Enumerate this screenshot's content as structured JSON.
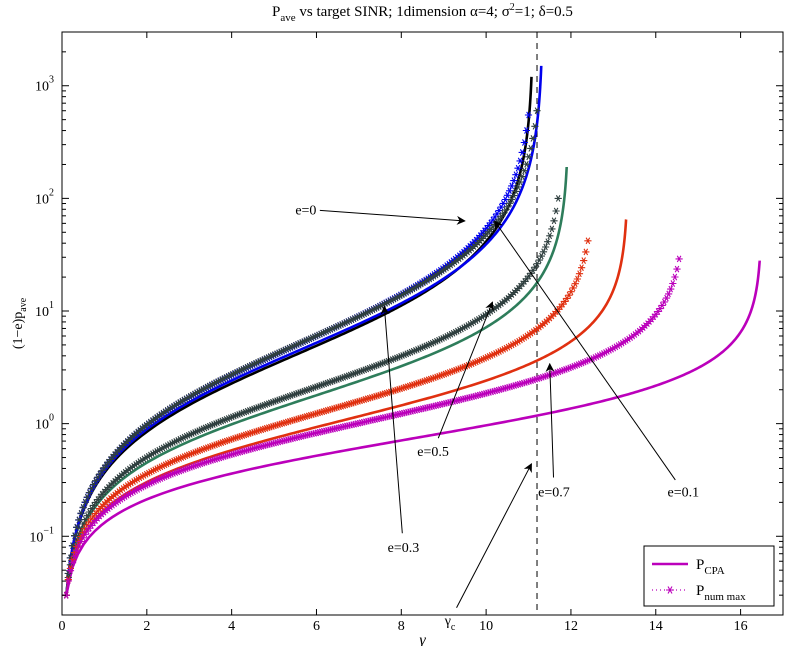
{
  "chart_data": {
    "type": "line",
    "title": {
      "prefix": "P",
      "prefix_sub": "ave",
      "text": " vs target SINR; 1dimension α=4; σ",
      "sup": "2",
      "suffix": "=1; δ=0.5"
    },
    "xlabel": "γ",
    "ylabel": {
      "base": "(1−e)p",
      "sub": "ave"
    },
    "x_scale": "linear",
    "y_scale": "log",
    "xlim": [
      0,
      17
    ],
    "ylim": [
      0.02,
      3000
    ],
    "x_ticks": [
      0,
      2,
      4,
      6,
      8,
      10,
      12,
      14,
      16
    ],
    "y_ticks": [
      {
        "value": 0.1,
        "base": "10",
        "exp": "−1"
      },
      {
        "value": 1,
        "base": "10",
        "exp": "0"
      },
      {
        "value": 10,
        "base": "10",
        "exp": "1"
      },
      {
        "value": 100,
        "base": "10",
        "exp": "2"
      },
      {
        "value": 1000,
        "base": "10",
        "exp": "3"
      }
    ],
    "grid": false,
    "vline": {
      "x": 11.2,
      "style": "dashed",
      "color": "#000000"
    },
    "series": [
      {
        "e": 0,
        "color": "#000000",
        "x_min": 0.1,
        "x_max": 11.07,
        "y_end": 1200
      },
      {
        "e": 0.1,
        "color": "#0000ee",
        "x_min": 0.1,
        "x_max": 11.3,
        "y_end": 1500
      },
      {
        "e": 0.3,
        "color": "#2e7d5b",
        "x_min": 0.1,
        "x_max": 11.9,
        "y_end": 190
      },
      {
        "e": 0.5,
        "color": "#e03010",
        "x_min": 0.1,
        "x_max": 13.3,
        "y_end": 65
      },
      {
        "e": 0.7,
        "color": "#bb00bb",
        "x_min": 0.1,
        "x_max": 16.45,
        "y_end": 28
      }
    ],
    "star_series": [
      {
        "e": 0,
        "color": "#0000ee",
        "x_max": 11.0,
        "y_end": 550
      },
      {
        "e": 0.1,
        "color": "#2f3f3f",
        "x_max": 11.2,
        "y_end": 600
      },
      {
        "e": 0.3,
        "color": "#2f3f3f",
        "x_max": 11.7,
        "y_end": 100
      },
      {
        "e": 0.5,
        "color": "#e03010",
        "x_max": 12.4,
        "y_end": 42
      },
      {
        "e": 0.7,
        "color": "#bb00bb",
        "x_max": 14.55,
        "y_end": 29
      }
    ],
    "annotations": [
      {
        "label": "e=0",
        "text_x": 5.75,
        "text_y": 80,
        "arrow_x": 9.5,
        "arrow_y": 63
      },
      {
        "label": "e=0.1",
        "text_x": 14.65,
        "text_y": 0.25,
        "arrow_x": 10.2,
        "arrow_y": 63
      },
      {
        "label": "e=0.3",
        "text_x": 8.05,
        "text_y": 0.08,
        "arrow_x": 7.6,
        "arrow_y": 11
      },
      {
        "label": "e=0.5",
        "text_x": 8.75,
        "text_y": 0.57,
        "arrow_x": 10.15,
        "arrow_y": 12
      },
      {
        "label": "e=0.7",
        "text_x": 11.6,
        "text_y": 0.25,
        "arrow_x": 11.5,
        "arrow_y": 3.4
      },
      {
        "label": "γ",
        "label_sub": "c",
        "text_x": 9.15,
        "text_y": -0.65,
        "arrow_x": 11.07,
        "arrow_y": 0.44
      }
    ],
    "legend": {
      "position": "bottom-right",
      "entries": [
        {
          "base": "P",
          "sub": "CPA",
          "style": "solid",
          "color": "#bb00bb"
        },
        {
          "base": "P",
          "sub": "num max",
          "style": "dotted-star",
          "color": "#bb00bb"
        }
      ]
    }
  }
}
